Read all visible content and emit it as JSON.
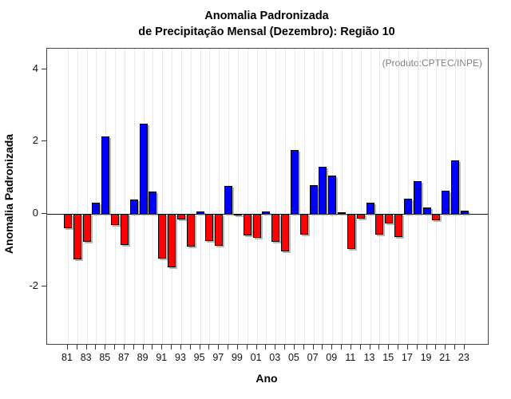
{
  "chart_data": {
    "type": "bar",
    "title_line1": "Anomalia Padronizada",
    "title_line2": "de Precipitação Mensal (Dezembro): Região 10",
    "annotation": "(Produto:CPTEC/INPE)",
    "xlabel": "Ano",
    "ylabel": "Anomalia Padronizada",
    "categories": [
      "81",
      "82",
      "83",
      "84",
      "85",
      "86",
      "87",
      "88",
      "89",
      "90",
      "91",
      "92",
      "93",
      "94",
      "95",
      "96",
      "97",
      "98",
      "99",
      "00",
      "01",
      "02",
      "03",
      "04",
      "05",
      "06",
      "07",
      "08",
      "09",
      "10",
      "11",
      "12",
      "13",
      "14",
      "15",
      "16",
      "17",
      "18",
      "19",
      "20",
      "21",
      "22",
      "23"
    ],
    "values": [
      -0.4,
      -1.25,
      -0.78,
      0.3,
      2.15,
      -0.32,
      -0.86,
      0.4,
      2.5,
      0.62,
      -1.23,
      -1.47,
      -0.15,
      -0.9,
      0.06,
      -0.74,
      -0.89,
      0.77,
      -0.04,
      -0.59,
      -0.66,
      0.07,
      -0.78,
      -1.04,
      1.77,
      -0.58,
      0.79,
      1.31,
      1.05,
      0.05,
      -0.98,
      -0.14,
      0.3,
      -0.58,
      -0.27,
      -0.64,
      0.43,
      0.91,
      0.17,
      -0.18,
      0.65,
      1.49,
      0.09
    ],
    "x_label_step": 2,
    "y_ticks": [
      -2,
      0,
      2,
      4
    ],
    "ylim": [
      -3.6,
      4.57
    ],
    "grid": "vertical-dotted",
    "legend_position": "none",
    "colors": {
      "positive": "#0000ff",
      "negative": "#ff0000",
      "bar_border": "#000000",
      "grid": "#d6d6d6",
      "annotation": "#808080",
      "axis": "#444444",
      "zero_line": "#111111"
    }
  }
}
